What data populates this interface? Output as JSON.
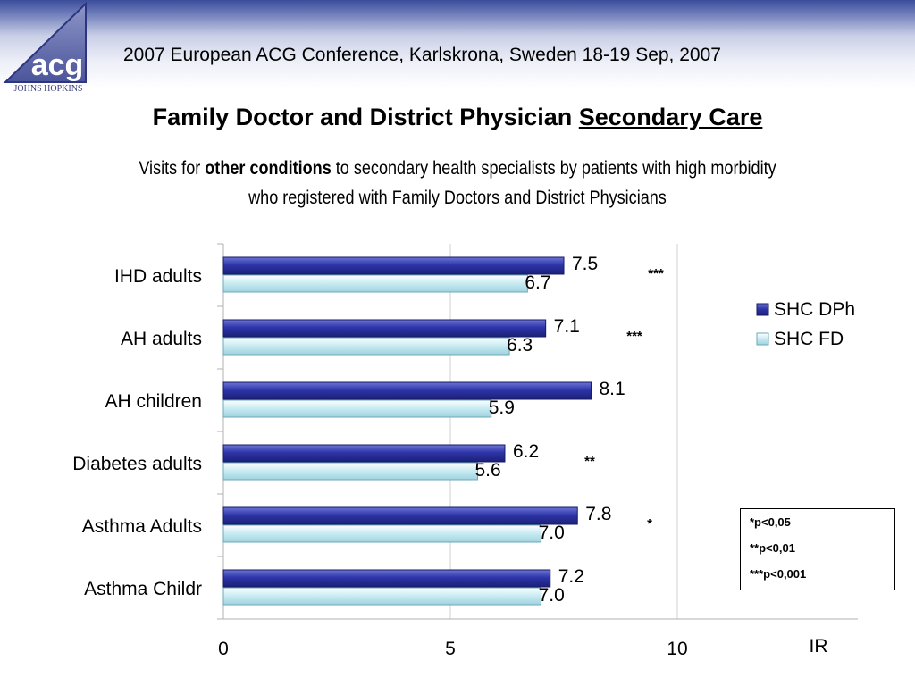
{
  "header": {
    "logo_text": "acg",
    "logo_subtext": "JOHNS HOPKINS",
    "conference": "2007 European ACG Conference, Karlskrona, Sweden 18-19 Sep, 2007"
  },
  "title": {
    "main": "Family Doctor and District Physician ",
    "underlined": "Secondary Care"
  },
  "subtitle": {
    "part1": "Visits for ",
    "bold": "other conditions",
    "part2": " to secondary health specialists by patients with high morbidity",
    "line2": "who registered with Family Doctors and District Physicians"
  },
  "notes": [
    "*p<0,05",
    "**p<0,01",
    "***p<0,001"
  ],
  "chart_data": {
    "type": "bar",
    "orientation": "horizontal",
    "categories": [
      "IHD adults",
      "AH adults",
      "AH children",
      "Diabetes adults",
      "Asthma Adults",
      "Asthma Childr"
    ],
    "series": [
      {
        "name": "SHC DPh",
        "values": [
          7.5,
          7.1,
          8.1,
          6.2,
          7.8,
          7.2
        ],
        "labels": [
          "7.5",
          "7.1",
          "8.1",
          "6.2",
          "7.8",
          "7.2"
        ],
        "color": "#2e35a8"
      },
      {
        "name": "SHC FD",
        "values": [
          6.7,
          6.3,
          5.9,
          5.6,
          7.0,
          7.0
        ],
        "labels": [
          "6.7",
          "6.3",
          "5.9",
          "5.6",
          "7.0",
          "7.0"
        ],
        "color": "#bfe6ee"
      }
    ],
    "significance": [
      "***",
      "***",
      "",
      "**",
      "*",
      ""
    ],
    "xlim": [
      0,
      14
    ],
    "xticks": [
      0,
      5,
      10
    ],
    "xlabel": "IR",
    "grid": true,
    "legend_position": "right"
  }
}
